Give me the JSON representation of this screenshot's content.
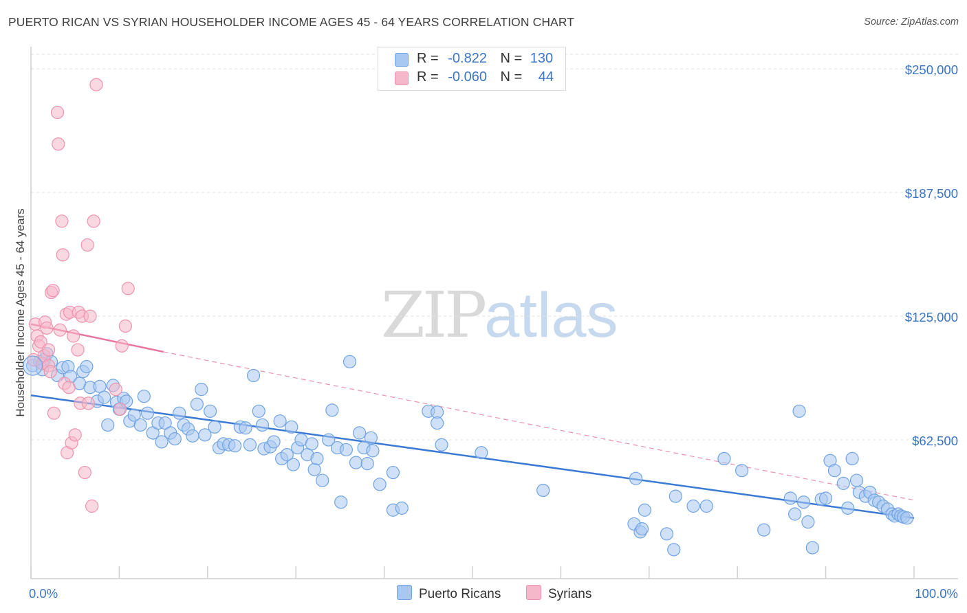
{
  "title": "PUERTO RICAN VS SYRIAN HOUSEHOLDER INCOME AGES 45 - 64 YEARS CORRELATION CHART",
  "source": "Source: ZipAtlas.com",
  "watermark": {
    "zip": "ZIP",
    "atlas": "atlas"
  },
  "legend": {
    "rows": [
      {
        "r_label": "R =",
        "r_value": "-0.822",
        "n_label": "N =",
        "n_value": "130",
        "color": "#a9c8f0"
      },
      {
        "r_label": "R =",
        "r_value": "-0.060",
        "n_label": "N =",
        "n_value": "44",
        "color": "#f5b8ca"
      }
    ]
  },
  "chart_data": {
    "type": "scatter",
    "title": "PUERTO RICAN VS SYRIAN HOUSEHOLDER INCOME AGES 45 - 64 YEARS CORRELATION CHART",
    "xlabel": "",
    "ylabel": "Householder Income Ages 45 - 64 years",
    "xlim": [
      0,
      100
    ],
    "ylim": [
      0,
      265000
    ],
    "x_tick_labels": [
      "0.0%",
      "100.0%"
    ],
    "y_ticks": [
      62500,
      125000,
      187500,
      250000
    ],
    "y_tick_labels": [
      "$62,500",
      "$125,000",
      "$187,500",
      "$250,000"
    ],
    "grid": true,
    "legend_position": "bottom",
    "series": [
      {
        "name": "Puerto Ricans",
        "color": "#6fa3e3",
        "fill": "#a9c8f0",
        "trend": {
          "x": [
            0,
            100
          ],
          "y": [
            85000,
            23000
          ],
          "style": "solid",
          "color": "#3a7ad5"
        },
        "points": [
          [
            0.2,
            100000
          ],
          [
            1,
            102000
          ],
          [
            1.3,
            98000
          ],
          [
            1.5,
            103000
          ],
          [
            1.8,
            106000
          ],
          [
            2.3,
            102000
          ],
          [
            3,
            95000
          ],
          [
            3.6,
            99000
          ],
          [
            4.2,
            99500
          ],
          [
            4.5,
            94500
          ],
          [
            5.5,
            91000
          ],
          [
            5.9,
            97000
          ],
          [
            6.3,
            99500
          ],
          [
            6.7,
            89000
          ],
          [
            7.5,
            82000
          ],
          [
            7.8,
            89500
          ],
          [
            8.3,
            84000
          ],
          [
            8.7,
            70000
          ],
          [
            9.3,
            90000
          ],
          [
            9.7,
            81500
          ],
          [
            10,
            78000
          ],
          [
            10.5,
            83500
          ],
          [
            10.8,
            82000
          ],
          [
            11.2,
            72000
          ],
          [
            11.7,
            75000
          ],
          [
            12.4,
            70000
          ],
          [
            12.8,
            84500
          ],
          [
            13.2,
            76000
          ],
          [
            13.8,
            66000
          ],
          [
            14.4,
            71000
          ],
          [
            14.8,
            61500
          ],
          [
            15.2,
            71000
          ],
          [
            15.8,
            66000
          ],
          [
            16.3,
            63000
          ],
          [
            16.8,
            76000
          ],
          [
            17.3,
            70000
          ],
          [
            17.8,
            68000
          ],
          [
            18.3,
            64500
          ],
          [
            18.8,
            80500
          ],
          [
            19.3,
            88000
          ],
          [
            19.7,
            65000
          ],
          [
            20.3,
            77000
          ],
          [
            20.8,
            69000
          ],
          [
            21.3,
            58500
          ],
          [
            21.8,
            60500
          ],
          [
            22.4,
            60000
          ],
          [
            23.1,
            59500
          ],
          [
            23.7,
            69000
          ],
          [
            24.3,
            68500
          ],
          [
            24.8,
            60000
          ],
          [
            25.2,
            95000
          ],
          [
            25.8,
            77000
          ],
          [
            26.2,
            70000
          ],
          [
            26.4,
            58000
          ],
          [
            27.1,
            59000
          ],
          [
            27.5,
            61500
          ],
          [
            28.2,
            72000
          ],
          [
            28.4,
            53000
          ],
          [
            29,
            55000
          ],
          [
            29.5,
            69000
          ],
          [
            29.7,
            50000
          ],
          [
            30.2,
            58500
          ],
          [
            30.6,
            62500
          ],
          [
            31.3,
            55000
          ],
          [
            31.8,
            60500
          ],
          [
            32.1,
            47500
          ],
          [
            32.4,
            53000
          ],
          [
            33,
            42000
          ],
          [
            33.7,
            62500
          ],
          [
            34.1,
            77500
          ],
          [
            34.7,
            58500
          ],
          [
            35.1,
            31000
          ],
          [
            35.7,
            57500
          ],
          [
            36.1,
            102000
          ],
          [
            36.8,
            51000
          ],
          [
            37.2,
            66000
          ],
          [
            37.7,
            58500
          ],
          [
            38.1,
            50500
          ],
          [
            38.5,
            63500
          ],
          [
            38.7,
            57000
          ],
          [
            39.5,
            40000
          ],
          [
            41,
            46000
          ],
          [
            41,
            27000
          ],
          [
            42,
            28000
          ],
          [
            45,
            77000
          ],
          [
            46,
            76500
          ],
          [
            46,
            71000
          ],
          [
            46.5,
            60000
          ],
          [
            51,
            56000
          ],
          [
            58,
            37000
          ],
          [
            68.3,
            20000
          ],
          [
            69,
            16000
          ],
          [
            69.2,
            17500
          ],
          [
            68.5,
            43000
          ],
          [
            69.5,
            27000
          ],
          [
            72,
            15000
          ],
          [
            72.8,
            7000
          ],
          [
            73,
            34000
          ],
          [
            75,
            29000
          ],
          [
            76.5,
            29000
          ],
          [
            78.5,
            53000
          ],
          [
            80.5,
            47000
          ],
          [
            83,
            17000
          ],
          [
            86,
            33000
          ],
          [
            86.5,
            25000
          ],
          [
            87,
            77000
          ],
          [
            87.5,
            31000
          ],
          [
            88,
            21000
          ],
          [
            88.5,
            8000
          ],
          [
            89.5,
            32500
          ],
          [
            90,
            33000
          ],
          [
            90.5,
            52000
          ],
          [
            91,
            47000
          ],
          [
            92,
            40500
          ],
          [
            92.5,
            28000
          ],
          [
            93,
            53000
          ],
          [
            93.5,
            42000
          ],
          [
            93.8,
            36000
          ],
          [
            94.5,
            34000
          ],
          [
            95,
            36000
          ],
          [
            95.5,
            32000
          ],
          [
            96,
            31000
          ],
          [
            96.5,
            29000
          ],
          [
            97,
            27500
          ],
          [
            97.5,
            25000
          ],
          [
            97.8,
            24000
          ],
          [
            98.2,
            25000
          ],
          [
            98.5,
            24000
          ],
          [
            98.8,
            23500
          ],
          [
            99.2,
            23000
          ]
        ]
      },
      {
        "name": "Syrians",
        "color": "#ee93ad",
        "fill": "#f5b8ca",
        "trend": {
          "x": [
            0,
            15,
            100
          ],
          "y": [
            121000,
            107000,
            32000
          ],
          "style": "solid-then-dashed",
          "color": "#e8759b"
        },
        "points": [
          [
            0.3,
            103000
          ],
          [
            0.5,
            121000
          ],
          [
            0.7,
            115000
          ],
          [
            0.9,
            110000
          ],
          [
            1.1,
            112000
          ],
          [
            1.3,
            101000
          ],
          [
            1.5,
            105000
          ],
          [
            1.6,
            122000
          ],
          [
            1.8,
            119000
          ],
          [
            2,
            108000
          ],
          [
            2,
            100000
          ],
          [
            2.2,
            97000
          ],
          [
            2.3,
            137000
          ],
          [
            2.5,
            138000
          ],
          [
            2.6,
            76000
          ],
          [
            3,
            228000
          ],
          [
            3.1,
            212000
          ],
          [
            3.3,
            118000
          ],
          [
            3.5,
            173000
          ],
          [
            3.6,
            156000
          ],
          [
            3.8,
            91000
          ],
          [
            4,
            126000
          ],
          [
            4.1,
            56000
          ],
          [
            4.3,
            89000
          ],
          [
            4.4,
            127000
          ],
          [
            4.6,
            61000
          ],
          [
            4.8,
            115000
          ],
          [
            5,
            65000
          ],
          [
            5.3,
            108000
          ],
          [
            5.4,
            127000
          ],
          [
            5.6,
            81000
          ],
          [
            5.8,
            125000
          ],
          [
            6.1,
            46000
          ],
          [
            6.4,
            161000
          ],
          [
            6.5,
            81000
          ],
          [
            6.7,
            125000
          ],
          [
            6.9,
            29000
          ],
          [
            7.1,
            173000
          ],
          [
            7.4,
            242000
          ],
          [
            9.6,
            88000
          ],
          [
            10.1,
            78000
          ],
          [
            10.3,
            110000
          ],
          [
            10.7,
            120000
          ],
          [
            11,
            139000
          ]
        ]
      }
    ]
  }
}
